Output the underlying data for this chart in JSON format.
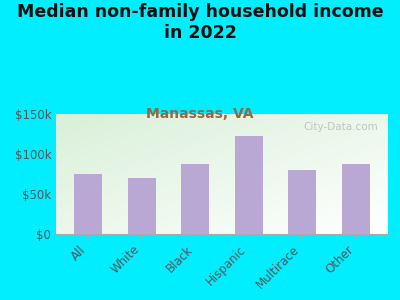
{
  "title": "Median non-family household income\nin 2022",
  "subtitle": "Manassas, VA",
  "categories": [
    "All",
    "White",
    "Black",
    "Hispanic",
    "Multirace",
    "Other"
  ],
  "values": [
    75000,
    70000,
    88000,
    122000,
    80000,
    87000
  ],
  "bar_color": "#b9a8d4",
  "background_outer": "#00eeff",
  "title_color": "#111111",
  "subtitle_color": "#996644",
  "tick_color": "#555555",
  "ylim": [
    0,
    150000
  ],
  "yticks": [
    0,
    50000,
    100000,
    150000
  ],
  "ytick_labels": [
    "$0",
    "$50k",
    "$100k",
    "$150k"
  ],
  "watermark": "City-Data.com",
  "title_fontsize": 12.5,
  "subtitle_fontsize": 10,
  "tick_fontsize": 8.5
}
